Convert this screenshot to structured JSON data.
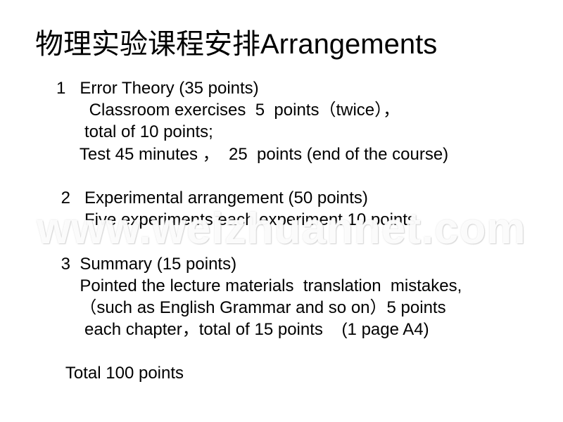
{
  "title": "物理实验课程安排Arrangements",
  "lines": {
    "l1": "1   Error Theory (35 points)",
    "l2": "       Classroom exercises  5  points（twice），",
    "l3": "      total of 10 points;",
    "l4": "     Test 45 minutes ，  25  points (end of the course)",
    "l5": " ",
    "l6": " 2   Experimental arrangement (50 points)",
    "l7": "      Five experiments each experiment 10 points",
    "l8": " ",
    "l9": " 3  Summary (15 points)",
    "l10": "     Pointed the lecture materials  translation  mistakes,",
    "l11": "     （such as English Grammar and so on）5 points",
    "l12": "      each chapter，total of 15 points    (1 page A4)",
    "l13": " ",
    "l14": "  Total 100 points"
  },
  "watermark": "www.weizhuannet.com",
  "style": {
    "title_fontsize": 40,
    "body_fontsize": 24,
    "text_color": "#000000",
    "background_color": "#ffffff",
    "watermark_color": "rgba(255,255,255,0.9)"
  }
}
